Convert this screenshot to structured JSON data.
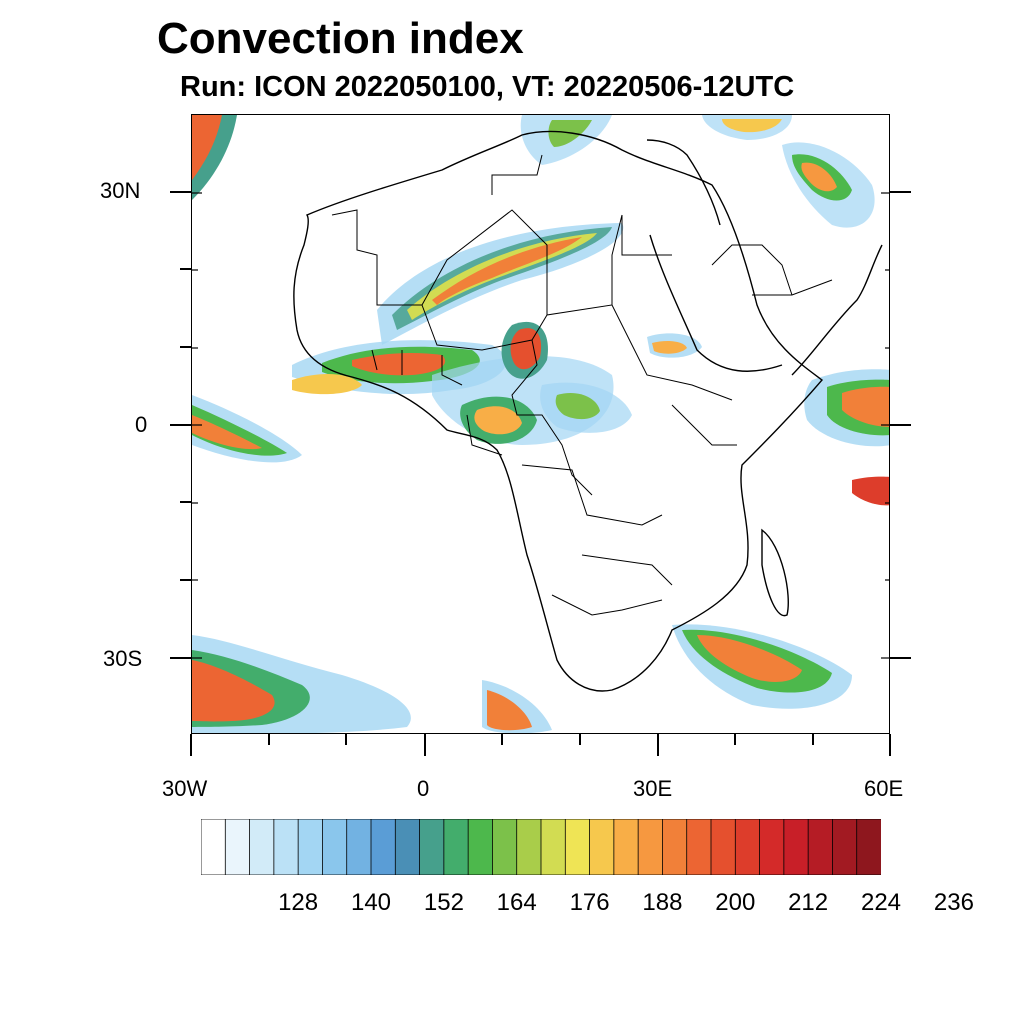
{
  "title": "Convection index",
  "subtitle": "Run: ICON 2022050100,  VT: 20220506-12UTC",
  "map": {
    "lon_range": [
      -30,
      60
    ],
    "lat_range": [
      -40,
      40
    ],
    "y_labels": [
      "30N",
      "0",
      "30S"
    ],
    "x_labels": [
      "30W",
      "0",
      "30E",
      "60E"
    ]
  },
  "colorbar": {
    "colors": [
      "#ffffff",
      "#eaf5fc",
      "#d2ebf8",
      "#bbe1f6",
      "#a3d6f3",
      "#8ac6ec",
      "#72b2e2",
      "#5a9dd6",
      "#4a8fb6",
      "#46a08c",
      "#43ad6c",
      "#4db84c",
      "#7cc14a",
      "#a9cd4a",
      "#d2dc52",
      "#efe455",
      "#f6c84d",
      "#f8ae47",
      "#f69840",
      "#f18039",
      "#ec6533",
      "#e5502e",
      "#dd3d2b",
      "#d42a29",
      "#c81f28",
      "#b51c25",
      "#a21a22",
      "#8e171e"
    ],
    "labels": [
      "128",
      "140",
      "152",
      "164",
      "176",
      "188",
      "200",
      "212",
      "224",
      "236"
    ],
    "label_values": [
      128,
      140,
      152,
      164,
      176,
      188,
      200,
      212,
      224,
      236
    ],
    "min": 116,
    "step": 4
  }
}
